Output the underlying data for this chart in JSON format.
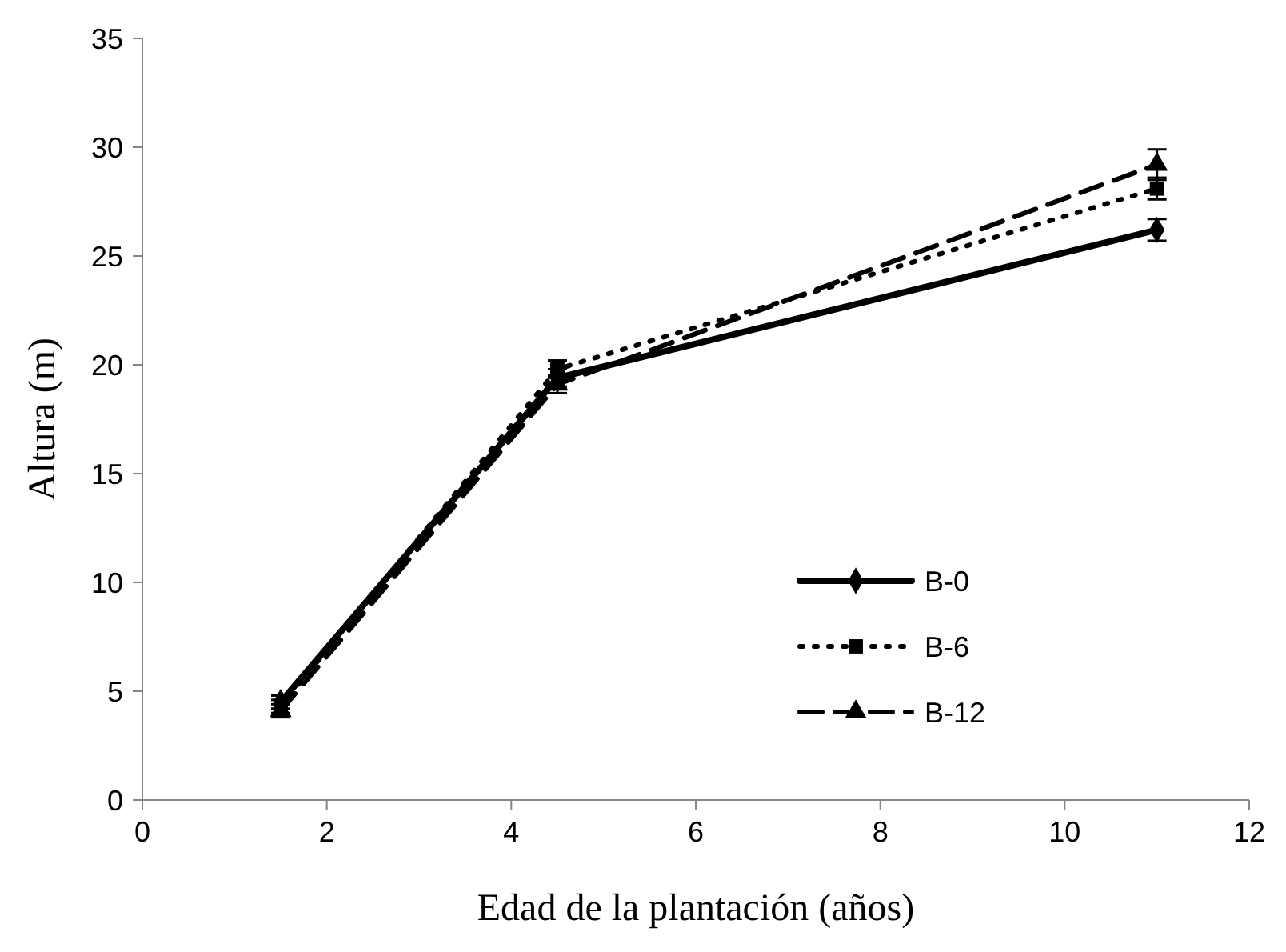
{
  "chart_data": {
    "type": "line",
    "xlabel": "Edad de la plantación (años)",
    "ylabel": "Altura (m)",
    "xlim": [
      0,
      12
    ],
    "xticks": [
      0,
      2,
      4,
      6,
      8,
      10,
      12
    ],
    "ylim": [
      0,
      35
    ],
    "yticks": [
      0,
      5,
      10,
      15,
      20,
      25,
      30,
      35
    ],
    "grid": false,
    "legend": "bottom right",
    "series": [
      {
        "name": "B-0",
        "color": "#000000",
        "x": [
          1.5,
          4.5,
          11
        ],
        "values": [
          4.5,
          19.4,
          26.2
        ],
        "errors": [
          0.3,
          0.4,
          0.5
        ],
        "marker": "diamond",
        "line_style": "solid"
      },
      {
        "name": "B-6",
        "color": "#000000",
        "x": [
          1.5,
          4.5,
          11
        ],
        "values": [
          4.3,
          19.8,
          28.1
        ],
        "errors": [
          0.3,
          0.4,
          0.5
        ],
        "marker": "square",
        "line_style": "dotted"
      },
      {
        "name": "B-12",
        "color": "#000000",
        "x": [
          1.5,
          4.5,
          11
        ],
        "values": [
          4.1,
          19.1,
          29.2
        ],
        "errors": [
          0.3,
          0.4,
          0.7
        ],
        "marker": "triangle",
        "line_style": "dashed"
      }
    ]
  }
}
